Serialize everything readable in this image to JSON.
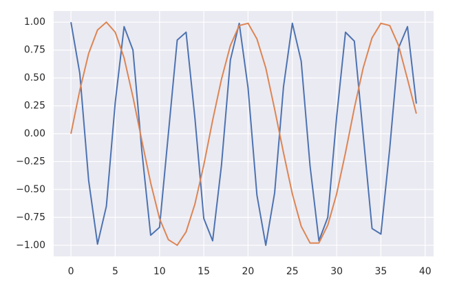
{
  "chart_data": {
    "type": "line",
    "x": [
      0,
      1,
      2,
      3,
      4,
      5,
      6,
      7,
      8,
      9,
      10,
      11,
      12,
      13,
      14,
      15,
      16,
      17,
      18,
      19,
      20,
      21,
      22,
      23,
      24,
      25,
      26,
      27,
      28,
      29,
      30,
      31,
      32,
      33,
      34,
      35,
      36,
      37,
      38,
      39
    ],
    "series": [
      {
        "color": "#4c72b0",
        "values": [
          1.0,
          0.54,
          -0.42,
          -0.99,
          -0.65,
          0.28,
          0.96,
          0.75,
          -0.15,
          -0.91,
          -0.84,
          0.0,
          0.84,
          0.91,
          0.14,
          -0.76,
          -0.96,
          -0.28,
          0.66,
          0.99,
          0.41,
          -0.55,
          -1.0,
          -0.53,
          0.42,
          0.99,
          0.65,
          -0.29,
          -0.96,
          -0.75,
          0.15,
          0.91,
          0.83,
          -0.01,
          -0.85,
          -0.9,
          -0.13,
          0.77,
          0.96,
          0.27
        ]
      },
      {
        "color": "#dd8452",
        "values": [
          0.0,
          0.39,
          0.72,
          0.93,
          1.0,
          0.91,
          0.68,
          0.33,
          -0.06,
          -0.44,
          -0.76,
          -0.95,
          -1.0,
          -0.88,
          -0.63,
          -0.28,
          0.12,
          0.49,
          0.79,
          0.97,
          0.99,
          0.85,
          0.59,
          0.22,
          -0.17,
          -0.54,
          -0.83,
          -0.98,
          -0.98,
          -0.82,
          -0.54,
          -0.17,
          0.23,
          0.59,
          0.86,
          0.99,
          0.97,
          0.79,
          0.49,
          0.18
        ]
      }
    ],
    "xlim": [
      -1.95,
      40.95
    ],
    "xticks": [
      0,
      5,
      10,
      15,
      20,
      25,
      30,
      35,
      40
    ],
    "ylim": [
      -1.1,
      1.1
    ],
    "yticks": [
      {
        "value": -1,
        "label": "−1.00"
      },
      {
        "value": -0.75,
        "label": "−0.75"
      },
      {
        "value": -0.5,
        "label": "−0.50"
      },
      {
        "value": -0.25,
        "label": "−0.25"
      },
      {
        "value": 0,
        "label": "0.00"
      },
      {
        "value": 0.25,
        "label": "0.25"
      },
      {
        "value": 0.5,
        "label": "0.50"
      },
      {
        "value": 0.75,
        "label": "0.75"
      },
      {
        "value": 1,
        "label": "1.00"
      }
    ],
    "grid": true,
    "background": "#eaeaf2"
  }
}
